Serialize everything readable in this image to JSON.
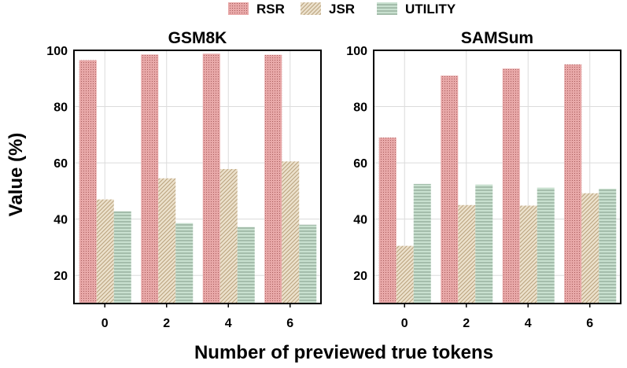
{
  "chart_data": {
    "type": "bar",
    "xlabel": "Number of previewed true tokens",
    "ylabel": "Value (%)",
    "legend": {
      "placement": "top-center",
      "entries": [
        {
          "key": "rsr",
          "label": "RSR",
          "color": "#e8a8a8",
          "pattern": "dots"
        },
        {
          "key": "jsr",
          "label": "JSR",
          "color": "#e6d8bf",
          "pattern": "diagonal-hatch"
        },
        {
          "key": "utility",
          "label": "UTILITY",
          "color": "#c4dccb",
          "pattern": "horizontal-hatch"
        }
      ]
    },
    "panels": [
      {
        "title": "GSM8K",
        "categories": [
          "0",
          "2",
          "4",
          "6"
        ],
        "ylim": [
          10,
          100
        ],
        "yticks": [
          20,
          40,
          60,
          80,
          100
        ],
        "series": [
          {
            "name": "RSR",
            "values": [
              96.5,
              98.5,
              98.8,
              98.4
            ]
          },
          {
            "name": "JSR",
            "values": [
              47.0,
              54.5,
              57.8,
              60.5
            ]
          },
          {
            "name": "UTILITY",
            "values": [
              42.8,
              38.6,
              37.2,
              38.0
            ]
          }
        ]
      },
      {
        "title": "SAMSum",
        "categories": [
          "0",
          "2",
          "4",
          "6"
        ],
        "ylim": [
          10,
          100
        ],
        "yticks": [
          20,
          40,
          60,
          80,
          100
        ],
        "series": [
          {
            "name": "RSR",
            "values": [
              69.0,
              91.0,
              93.5,
              95.0
            ]
          },
          {
            "name": "JSR",
            "values": [
              30.5,
              45.0,
              44.8,
              49.2
            ]
          },
          {
            "name": "UTILITY",
            "values": [
              52.5,
              52.3,
              51.2,
              50.8
            ]
          }
        ]
      }
    ]
  }
}
